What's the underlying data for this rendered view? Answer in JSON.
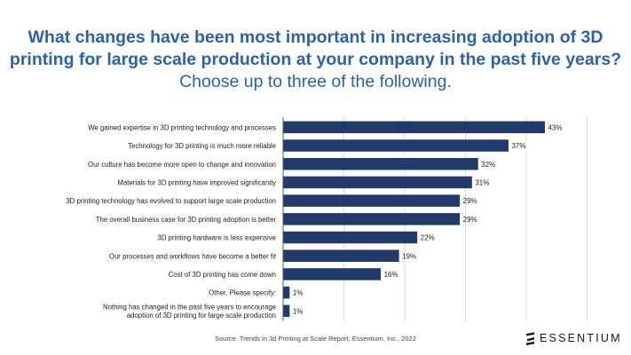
{
  "title_line1": "What changes have been most important in increasing adoption of 3D",
  "title_line2": "printing for large scale production at your company in the past five years?",
  "subtitle": "Choose up to three of the following.",
  "source": "Source: Trends in 3d Printing at Scale Report, Essentium, Inc., 2022",
  "brand": "ESSENTIUM",
  "colors": {
    "title": "#2a62b3",
    "bar": "#1f3a6b",
    "grid": "#d0d0d0"
  },
  "chart_data": {
    "type": "bar",
    "orientation": "horizontal",
    "categories": [
      [
        "We gained expertise in 3D printing technology and processes"
      ],
      [
        "Technology for 3D printing is much more reliable"
      ],
      [
        "Our culture has become more open to change and innovation"
      ],
      [
        "Materials for 3D printing have improved significantly"
      ],
      [
        "3D printing technology has evolved to support large scale production"
      ],
      [
        "The overall business case for 3D printing adoption is better"
      ],
      [
        "3D printing hardware is less expensive"
      ],
      [
        "Our processes and workflows have become a better fit"
      ],
      [
        "Cost of 3D printing has come down"
      ],
      [
        "Other. Please specify:"
      ],
      [
        "Nothing has changed in the past five years to encourage",
        "adoption of 3D printing for large scale production"
      ]
    ],
    "values": [
      43,
      37,
      32,
      31,
      29,
      29,
      22,
      19,
      16,
      1,
      1
    ],
    "value_labels": [
      "43%",
      "37%",
      "32%",
      "31%",
      "29%",
      "29%",
      "22%",
      "19%",
      "16%",
      "1%",
      "1%"
    ],
    "xlim": [
      0,
      50
    ],
    "grid": true
  }
}
